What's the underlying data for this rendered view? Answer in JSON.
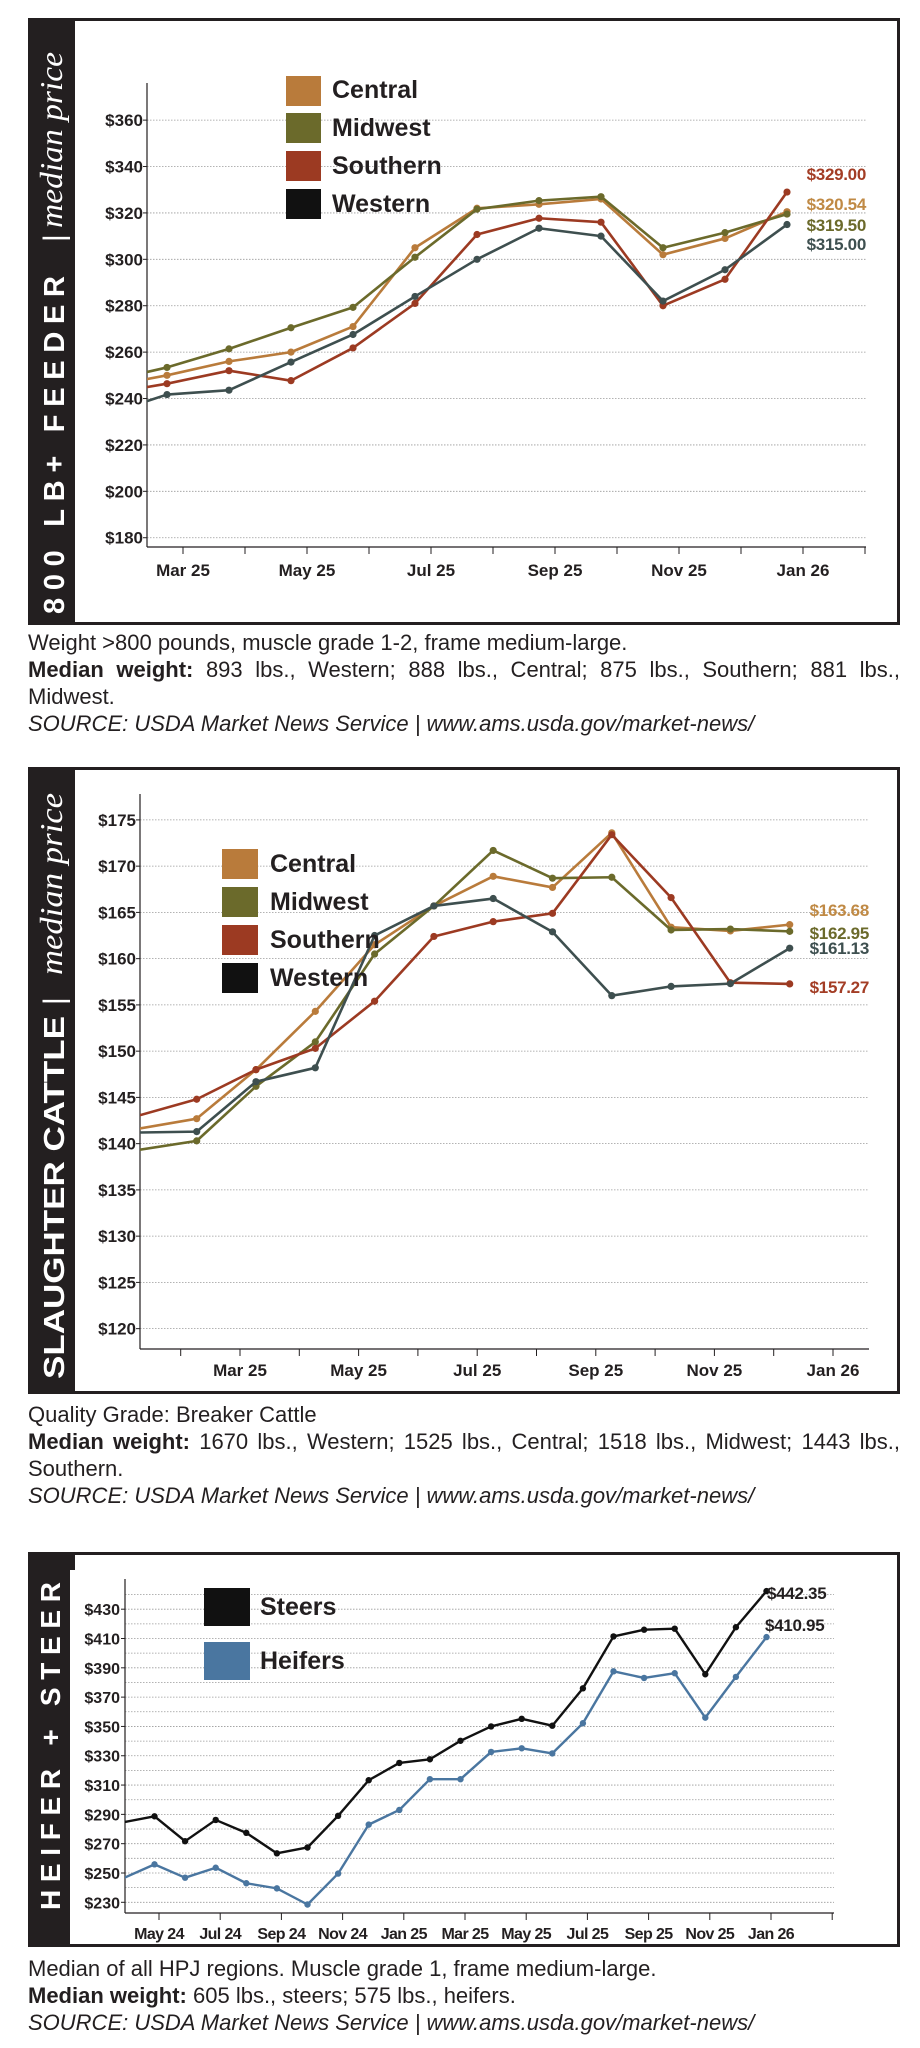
{
  "charts": [
    {
      "side_title": "800 LB+ FEEDER",
      "side_subtitle": "median price",
      "caption": {
        "line1": "Weight >800 pounds, muscle grade 1-2, frame medium-large.",
        "weight_label": "Median weight:",
        "weight_text": " 893 lbs., Western; 888 lbs., Central; 875 lbs., Southern; 881 lbs., Midwest.",
        "source": "SOURCE: USDA Market News Service | www.ams.usda.gov/market-news/"
      }
    },
    {
      "side_title": "SLAUGHTER CATTLE",
      "side_subtitle": "median price",
      "caption": {
        "line1": "Quality Grade: Breaker Cattle",
        "weight_label": "Median weight:",
        "weight_text": " 1670 lbs., Western; 1525  lbs., Central; 1518 lbs., Midwest; 1443 lbs., Southern.",
        "source": "SOURCE: USDA Market News Service | www.ams.usda.gov/market-news/"
      }
    },
    {
      "side_title": "HEIFER + STEER",
      "side_subtitle": "",
      "caption": {
        "line1": "Median of all HPJ regions. Muscle grade 1, frame medium-large.",
        "weight_label": "Median weight:",
        "weight_text": " 605 lbs., steers; 575 lbs., heifers.",
        "source": "SOURCE: USDA Market News Service | www.ams.usda.gov/market-news/"
      }
    }
  ],
  "chart_data": [
    {
      "type": "line",
      "ylim": [
        176,
        376
      ],
      "grid": true,
      "legend": "top-left",
      "y_ticks": [
        180,
        200,
        220,
        240,
        260,
        280,
        300,
        320,
        340,
        360
      ],
      "y_tick_labels": [
        "$180",
        "$200",
        "$220",
        "$240",
        "$260",
        "$280",
        "$300",
        "$320",
        "$340",
        "$360"
      ],
      "x_ticks": [
        "2025-03",
        "2025-05",
        "2025-07",
        "2025-09",
        "2025-11",
        "2026-01"
      ],
      "x_tick_labels": [
        "Mar 25",
        "May 25",
        "Jul 25",
        "Sep 25",
        "Nov 25",
        "Jan 26"
      ],
      "x": [
        "2025-02",
        "2025-03",
        "2025-04",
        "2025-05",
        "2025-06",
        "2025-07",
        "2025-08",
        "2025-09",
        "2025-10",
        "2025-11",
        "2025-12",
        "2026-01"
      ],
      "series": [
        {
          "name": "Central",
          "color": "#b97b3b",
          "label_color": "#c08a45",
          "end_label": "$320.54",
          "values": [
            245,
            250,
            256,
            260,
            271,
            305,
            322,
            323.7,
            326,
            302,
            309,
            320.54
          ]
        },
        {
          "name": "Midwest",
          "color": "#6b6a2b",
          "label_color": "#6b6a2b",
          "end_label": "$319.50",
          "values": [
            247.3,
            253.4,
            261.4,
            270.5,
            279.3,
            300.9,
            321.6,
            325.3,
            327,
            305,
            311.5,
            319.5
          ]
        },
        {
          "name": "Southern",
          "color": "#9c3a22",
          "label_color": "#a33d25",
          "end_label": "$329.00",
          "values": [
            241.9,
            246.4,
            252,
            247.7,
            261.8,
            281,
            310.7,
            317.7,
            316,
            280,
            291.4,
            329
          ]
        },
        {
          "name": "Western",
          "color": "#3e4f4f",
          "legend_color": "#111111",
          "label_color": "#3e5050",
          "end_label": "$315.00",
          "values": [
            233,
            241.7,
            243.6,
            255.7,
            267.6,
            284,
            300,
            313.4,
            310,
            282,
            295.5,
            315
          ]
        }
      ]
    },
    {
      "type": "line",
      "ylim": [
        117.8,
        177.8
      ],
      "grid": true,
      "legend": "top-left",
      "y_ticks": [
        120,
        125,
        130,
        135,
        140,
        145,
        150,
        155,
        160,
        165,
        170,
        175
      ],
      "y_tick_labels": [
        "$120",
        "$125",
        "$130",
        "$135",
        "$140",
        "$145",
        "$150",
        "$155",
        "$160",
        "$165",
        "$170",
        "$175"
      ],
      "x_ticks": [
        "2025-03",
        "2025-05",
        "2025-07",
        "2025-09",
        "2025-11",
        "2026-01"
      ],
      "x_tick_labels": [
        "Mar 25",
        "May 25",
        "Jul 25",
        "Sep 25",
        "Nov 25",
        "Jan 26"
      ],
      "x": [
        "2025-01",
        "2025-02",
        "2025-03",
        "2025-04",
        "2025-05",
        "2025-06",
        "2025-07",
        "2025-08",
        "2025-09",
        "2025-10",
        "2025-11",
        "2025-12"
      ],
      "series": [
        {
          "name": "Central",
          "color": "#b97b3b",
          "label_color": "#c08a45",
          "end_label": "$163.68",
          "values": [
            141.6,
            142.7,
            148.0,
            154.3,
            161.5,
            165.7,
            168.9,
            167.7,
            173.6,
            163.4,
            163.0,
            163.68
          ]
        },
        {
          "name": "Midwest",
          "color": "#6b6a2b",
          "label_color": "#6b6a2b",
          "end_label": "$162.95",
          "values": [
            139.3,
            140.3,
            146.2,
            151.0,
            160.5,
            165.7,
            171.7,
            168.7,
            168.8,
            163.1,
            163.2,
            162.95
          ]
        },
        {
          "name": "Southern",
          "color": "#9c3a22",
          "label_color": "#a33d25",
          "end_label": "$157.27",
          "values": [
            143.0,
            144.8,
            148.0,
            150.3,
            155.4,
            162.4,
            164.0,
            164.9,
            173.4,
            166.6,
            157.4,
            157.27
          ]
        },
        {
          "name": "Western",
          "color": "#3e4f4f",
          "legend_color": "#111111",
          "label_color": "#3e5050",
          "end_label": "$161.13",
          "values": [
            141.2,
            141.3,
            146.7,
            148.2,
            162.5,
            165.7,
            166.5,
            162.9,
            156.0,
            157.0,
            157.3,
            161.13
          ]
        }
      ]
    },
    {
      "type": "line",
      "ylim": [
        222.7,
        450.6
      ],
      "grid": true,
      "legend": "top-left",
      "y_ticks": [
        230,
        250,
        270,
        290,
        310,
        330,
        350,
        370,
        390,
        410,
        430
      ],
      "y_tick_labels": [
        "$230",
        "$250",
        "$270",
        "$290",
        "$310",
        "$330",
        "$350",
        "$370",
        "$390",
        "$410",
        "$430"
      ],
      "x_ticks": [
        "2024-05",
        "2024-07",
        "2024-09",
        "2024-11",
        "2025-01",
        "2025-03",
        "2025-05",
        "2025-07",
        "2025-09",
        "2025-11",
        "2026-01"
      ],
      "x_tick_labels": [
        "May 24",
        "Jul 24",
        "Sep 24",
        "Nov 24",
        "Jan 25",
        "Mar 25",
        "May 25",
        "Jul 25",
        "Sep 25",
        "Nov 25",
        "Jan 26"
      ],
      "x": [
        "2024-04",
        "2024-05",
        "2024-06",
        "2024-07",
        "2024-08",
        "2024-09",
        "2024-10",
        "2024-11",
        "2024-12",
        "2025-01",
        "2025-02",
        "2025-03",
        "2025-04",
        "2025-05",
        "2025-06",
        "2025-07",
        "2025-08",
        "2025-09",
        "2025-10",
        "2025-11",
        "2025-12",
        "2026-01"
      ],
      "series": [
        {
          "name": "Steers",
          "color": "#111111",
          "label_color": "#231f20",
          "end_label": "$442.35",
          "values": [
            284.7,
            288.7,
            271.7,
            286.2,
            277.4,
            263.4,
            267.4,
            289.0,
            313.3,
            325.1,
            327.6,
            340.2,
            350.0,
            355.2,
            350.5,
            376.0,
            411.4,
            416.0,
            416.7,
            385.6,
            417.7,
            442.35
          ]
        },
        {
          "name": "Heifers",
          "color": "#4a76a0",
          "legend_color": "#4a76a0",
          "label_color": "#231f20",
          "end_label": "$410.95",
          "values": [
            246.6,
            255.9,
            246.8,
            253.6,
            243.0,
            239.5,
            228.5,
            249.6,
            283.0,
            293.0,
            314.0,
            314.0,
            332.6,
            335.1,
            331.6,
            352.2,
            387.6,
            383.1,
            386.3,
            356.0,
            383.8,
            410.95
          ]
        }
      ]
    }
  ]
}
